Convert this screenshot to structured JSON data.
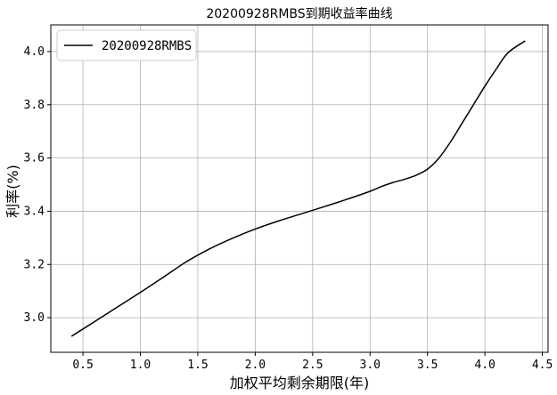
{
  "chart_data": {
    "type": "line",
    "title": "20200928RMBS到期收益率曲线",
    "xlabel": "加权平均剩余期限(年)",
    "ylabel": "利率(%)",
    "xlim": [
      0.22,
      4.55
    ],
    "ylim": [
      2.87,
      4.1
    ],
    "xticks": [
      "0.5",
      "1.0",
      "1.5",
      "2.0",
      "2.5",
      "3.0",
      "3.5",
      "4.0",
      "4.5"
    ],
    "xtick_values": [
      0.5,
      1.0,
      1.5,
      2.0,
      2.5,
      3.0,
      3.5,
      4.0,
      4.5
    ],
    "yticks": [
      "3.0",
      "3.2",
      "3.4",
      "3.6",
      "3.8",
      "4.0"
    ],
    "ytick_values": [
      3.0,
      3.2,
      3.4,
      3.6,
      3.8,
      4.0
    ],
    "grid": true,
    "legend_position": "top-left",
    "series": [
      {
        "name": "20200928RMBS",
        "color": "#000000",
        "x": [
          0.4,
          0.6,
          0.8,
          1.0,
          1.2,
          1.4,
          1.6,
          1.8,
          2.0,
          2.2,
          2.4,
          2.6,
          2.8,
          3.0,
          3.1,
          3.2,
          3.3,
          3.4,
          3.5,
          3.6,
          3.7,
          3.8,
          3.9,
          4.0,
          4.1,
          4.2,
          4.35
        ],
        "y": [
          2.93,
          2.985,
          3.04,
          3.095,
          3.152,
          3.21,
          3.258,
          3.298,
          3.333,
          3.363,
          3.39,
          3.417,
          3.445,
          3.475,
          3.493,
          3.508,
          3.52,
          3.535,
          3.558,
          3.6,
          3.66,
          3.73,
          3.8,
          3.87,
          3.935,
          3.995,
          4.04
        ]
      }
    ]
  }
}
